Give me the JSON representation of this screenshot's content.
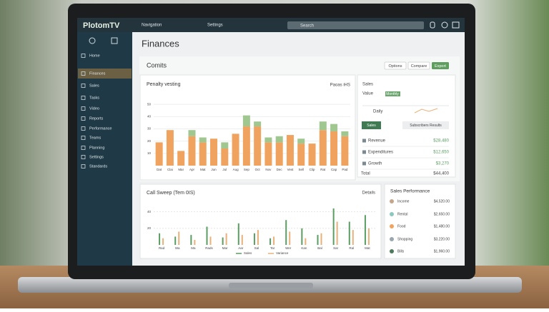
{
  "app": {
    "brand": "PlotomTV",
    "menu": "Navigation",
    "breadcrumb": "Settings",
    "search": "Search"
  },
  "nav": [
    {
      "label": "Home"
    },
    {
      "label": "Finances",
      "active": true
    },
    {
      "label": "Sales"
    },
    {
      "label": "Tasks"
    },
    {
      "label": "Video"
    },
    {
      "label": "Reports"
    },
    {
      "label": "Performance"
    },
    {
      "label": "Teams"
    },
    {
      "label": "Planning"
    },
    {
      "label": "Settings"
    },
    {
      "label": "Standards"
    }
  ],
  "page": {
    "title": "Finances",
    "section": "Comits",
    "buttons": [
      {
        "label": "Options"
      },
      {
        "label": "Compare"
      },
      {
        "label": "Export",
        "primary": true
      }
    ]
  },
  "bar_chart": {
    "title": "Penalty vesting",
    "link": "Paoas iHS",
    "ylim": [
      0,
      60
    ],
    "yticks": [
      10,
      20,
      30,
      40,
      50
    ],
    "categories": [
      "Dat",
      "Clai",
      "Mar",
      "Apr",
      "Mat",
      "Jun",
      "Jul",
      "Aug",
      "Sep",
      "Oct",
      "Nov",
      "Dec",
      "Vest",
      "Sell",
      "Clip",
      "Rat",
      "Cap",
      "Pad"
    ],
    "series": [
      {
        "color": "#f0a35e",
        "values": [
          19,
          29,
          12,
          24,
          19,
          22,
          14,
          26,
          32,
          32,
          19,
          19,
          25,
          18,
          18,
          29,
          28,
          24
        ]
      },
      {
        "color": "#9fc78f",
        "values": [
          0,
          0,
          0,
          5,
          4,
          0,
          5,
          0,
          9,
          4,
          4,
          5,
          0,
          4,
          0,
          7,
          6,
          4
        ]
      }
    ]
  },
  "side_panel": {
    "title": "Sales",
    "value_label": "Value",
    "chip": "Monthly",
    "subtitle": "Daily",
    "tabs": [
      {
        "label": "Sales",
        "active": true
      },
      {
        "label": "Subscribers Results"
      }
    ],
    "rows": [
      {
        "label": "Revenue",
        "amount": "$28,480"
      },
      {
        "label": "Expenditures",
        "amount": "$12,650"
      },
      {
        "label": "Growth",
        "amount": "$3,270"
      }
    ],
    "total": {
      "label": "Total",
      "amount": "$44,400"
    }
  },
  "line_chart": {
    "title": "Call Sweep (Tem 0IS)",
    "link": "Details",
    "ylim": [
      0,
      50
    ],
    "yticks": [
      20,
      40
    ],
    "categories": [
      "Rad",
      "Wa",
      "Ma",
      "Rads",
      "Mar",
      "Aar",
      "Sal",
      "Tar",
      "Wer",
      "Kan",
      "Bal",
      "Sar",
      "Ral",
      "Mat"
    ],
    "series": [
      {
        "name": "Sales",
        "color": "#5a9e62",
        "values": [
          14,
          10,
          12,
          22,
          9,
          26,
          14,
          8,
          30,
          20,
          12,
          44,
          28,
          36
        ]
      },
      {
        "name": "Variance",
        "color": "#eab07a",
        "values": [
          8,
          16,
          6,
          10,
          14,
          12,
          18,
          10,
          16,
          8,
          14,
          28,
          18,
          20
        ]
      }
    ]
  },
  "accounts": {
    "title": "Sales Performance",
    "items": [
      {
        "label": "Income",
        "amount": "$4,520.00",
        "color": "#c4a78b"
      },
      {
        "label": "Rental",
        "amount": "$2,650.00",
        "color": "#8cc7c0"
      },
      {
        "label": "Food",
        "amount": "$1,480.00",
        "color": "#f0a35e"
      },
      {
        "label": "Shopping",
        "amount": "$3,220.00",
        "color": "#9aa6ae"
      },
      {
        "label": "Bills",
        "amount": "$1,960.00",
        "color": "#4d7a5a"
      }
    ]
  }
}
